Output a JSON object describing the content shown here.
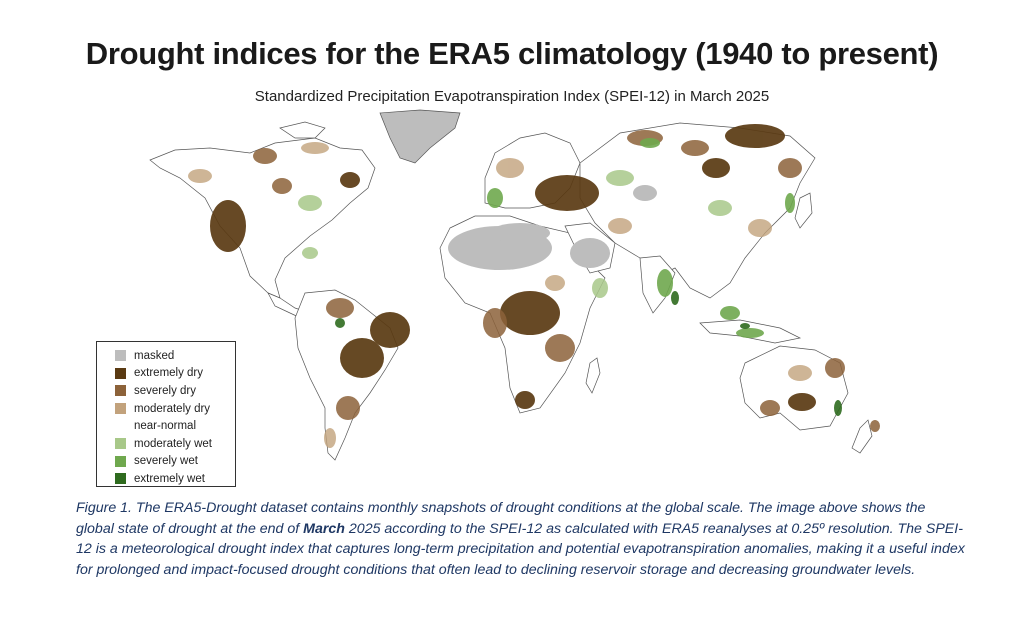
{
  "title": "Drought indices for the ERA5 climatology (1940 to present)",
  "subtitle": "Standardized Precipitation Evapotranspiration Index (SPEI-12) in March 2025",
  "colors": {
    "masked": "#bdbdbd",
    "extremely_dry": "#5a3a12",
    "severely_dry": "#8c6239",
    "moderately_dry": "#c2a27c",
    "near_normal": "#ffffff",
    "moderately_wet": "#a8c889",
    "severely_wet": "#6fa84e",
    "extremely_wet": "#2f6b1f",
    "coastline": "#555555"
  },
  "legend": [
    {
      "label": "masked",
      "color": "#bdbdbd"
    },
    {
      "label": "extremely dry",
      "color": "#5a3a12"
    },
    {
      "label": "severely dry",
      "color": "#8c6239"
    },
    {
      "label": "moderately dry",
      "color": "#c2a27c"
    },
    {
      "label": "near-normal",
      "color": "#ffffff"
    },
    {
      "label": "moderately wet",
      "color": "#a8c889"
    },
    {
      "label": "severely wet",
      "color": "#6fa84e"
    },
    {
      "label": "extremely wet",
      "color": "#2f6b1f"
    }
  ],
  "caption": {
    "part1": "Figure 1. The ERA5-Drought dataset contains monthly snapshots of drought conditions at the global scale. The image above shows the global state of drought at the end of ",
    "bold": "March",
    "part2": " 2025 according to the SPEI-12 as calculated with ERA5 reanalyses at 0.25º resolution. The SPEI-12 is a meteorological drought index that captures long-term precipitation and potential evapotranspiration anomalies, making it a useful index for prolonged and impact-focused drought conditions that often lead to declining reservoir storage and decreasing groundwater levels."
  }
}
